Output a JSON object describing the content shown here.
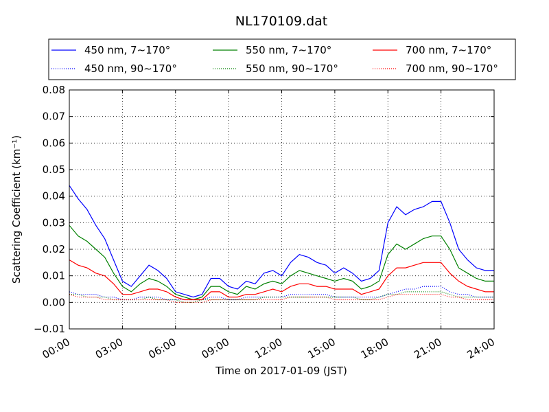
{
  "chart_data": {
    "type": "line",
    "title": "NL170109.dat",
    "xlabel": "Time on 2017-01-09 (JST)",
    "ylabel": "Scattering Coefficient (km⁻¹)",
    "xlim": [
      "2017-01-09 00:00",
      "2017-01-10 00:00"
    ],
    "ylim": [
      -0.01,
      0.08
    ],
    "x_ticks": [
      "00:00",
      "03:00",
      "06:00",
      "09:00",
      "12:00",
      "15:00",
      "18:00",
      "21:00",
      "24:00"
    ],
    "y_ticks": [
      "−0.01",
      "0.00",
      "0.01",
      "0.02",
      "0.03",
      "0.04",
      "0.05",
      "0.06",
      "0.07",
      "0.08"
    ],
    "grid": true,
    "legend_position": "top",
    "x": [
      "00:00",
      "00:30",
      "01:00",
      "01:30",
      "02:00",
      "02:30",
      "03:00",
      "03:30",
      "04:00",
      "04:30",
      "05:00",
      "05:30",
      "06:00",
      "06:30",
      "07:00",
      "07:30",
      "08:00",
      "08:30",
      "09:00",
      "09:30",
      "10:00",
      "10:30",
      "11:00",
      "11:30",
      "12:00",
      "12:30",
      "13:00",
      "13:30",
      "14:00",
      "14:30",
      "15:00",
      "15:30",
      "16:00",
      "16:30",
      "17:00",
      "17:30",
      "18:00",
      "18:30",
      "19:00",
      "19:30",
      "20:00",
      "20:30",
      "21:00",
      "21:30",
      "22:00",
      "22:30",
      "23:00",
      "23:30",
      "24:00"
    ],
    "series": [
      {
        "name": "450 nm, 7∼170°",
        "color": "#0000ff",
        "style": "solid",
        "values": [
          0.044,
          0.039,
          0.035,
          0.029,
          0.024,
          0.016,
          0.008,
          0.006,
          0.01,
          0.014,
          0.012,
          0.009,
          0.004,
          0.003,
          0.002,
          0.003,
          0.009,
          0.009,
          0.006,
          0.005,
          0.008,
          0.007,
          0.011,
          0.012,
          0.01,
          0.015,
          0.018,
          0.017,
          0.015,
          0.014,
          0.011,
          0.013,
          0.011,
          0.008,
          0.009,
          0.012,
          0.03,
          0.036,
          0.033,
          0.035,
          0.036,
          0.038,
          0.038,
          0.03,
          0.02,
          0.016,
          0.013,
          0.012,
          0.012
        ]
      },
      {
        "name": "450 nm, 90∼170°",
        "color": "#0000ff",
        "style": "dotted",
        "values": [
          0.004,
          0.003,
          0.003,
          0.003,
          0.002,
          0.002,
          0.001,
          0.001,
          0.002,
          0.002,
          0.002,
          0.001,
          0.001,
          0.001,
          0.001,
          0.001,
          0.002,
          0.002,
          0.001,
          0.001,
          0.002,
          0.002,
          0.002,
          0.002,
          0.002,
          0.003,
          0.003,
          0.003,
          0.003,
          0.003,
          0.002,
          0.002,
          0.002,
          0.002,
          0.002,
          0.002,
          0.003,
          0.004,
          0.005,
          0.005,
          0.006,
          0.006,
          0.006,
          0.004,
          0.003,
          0.003,
          0.002,
          0.002,
          0.002
        ]
      },
      {
        "name": "550 nm, 7∼170°",
        "color": "#008000",
        "style": "solid",
        "values": [
          0.029,
          0.025,
          0.023,
          0.02,
          0.017,
          0.011,
          0.006,
          0.004,
          0.007,
          0.009,
          0.008,
          0.006,
          0.003,
          0.002,
          0.001,
          0.002,
          0.006,
          0.006,
          0.004,
          0.003,
          0.006,
          0.005,
          0.007,
          0.008,
          0.007,
          0.01,
          0.012,
          0.011,
          0.01,
          0.009,
          0.008,
          0.009,
          0.008,
          0.005,
          0.006,
          0.008,
          0.018,
          0.022,
          0.02,
          0.022,
          0.024,
          0.025,
          0.025,
          0.02,
          0.013,
          0.011,
          0.009,
          0.008,
          0.008
        ]
      },
      {
        "name": "550 nm, 90∼170°",
        "color": "#008000",
        "style": "dotted",
        "values": [
          0.003,
          0.003,
          0.002,
          0.002,
          0.002,
          0.001,
          0.001,
          0.001,
          0.001,
          0.002,
          0.001,
          0.001,
          0.001,
          0.0,
          0.0,
          0.001,
          0.001,
          0.001,
          0.001,
          0.001,
          0.001,
          0.001,
          0.002,
          0.002,
          0.002,
          0.002,
          0.002,
          0.002,
          0.002,
          0.002,
          0.002,
          0.002,
          0.002,
          0.001,
          0.001,
          0.002,
          0.003,
          0.003,
          0.004,
          0.004,
          0.004,
          0.004,
          0.004,
          0.003,
          0.002,
          0.002,
          0.002,
          0.002,
          0.002
        ]
      },
      {
        "name": "700 nm, 7∼170°",
        "color": "#ff0000",
        "style": "solid",
        "values": [
          0.016,
          0.014,
          0.013,
          0.011,
          0.01,
          0.007,
          0.003,
          0.003,
          0.004,
          0.005,
          0.005,
          0.004,
          0.002,
          0.001,
          0.001,
          0.001,
          0.004,
          0.004,
          0.002,
          0.002,
          0.003,
          0.003,
          0.004,
          0.005,
          0.004,
          0.006,
          0.007,
          0.007,
          0.006,
          0.006,
          0.005,
          0.005,
          0.005,
          0.003,
          0.004,
          0.005,
          0.01,
          0.013,
          0.013,
          0.014,
          0.015,
          0.015,
          0.015,
          0.011,
          0.008,
          0.006,
          0.005,
          0.004,
          0.004
        ]
      },
      {
        "name": "700 nm, 90∼170°",
        "color": "#ff0000",
        "style": "dotted",
        "values": [
          0.003,
          0.002,
          0.002,
          0.002,
          0.001,
          0.001,
          0.001,
          0.001,
          0.001,
          0.001,
          0.001,
          0.001,
          0.0,
          0.0,
          0.0,
          0.0,
          0.001,
          0.001,
          0.001,
          0.001,
          0.001,
          0.001,
          0.001,
          0.001,
          0.001,
          0.002,
          0.002,
          0.002,
          0.002,
          0.002,
          0.001,
          0.001,
          0.001,
          0.001,
          0.001,
          0.001,
          0.002,
          0.003,
          0.003,
          0.003,
          0.003,
          0.003,
          0.003,
          0.002,
          0.002,
          0.001,
          0.001,
          0.001,
          0.001
        ]
      }
    ]
  }
}
